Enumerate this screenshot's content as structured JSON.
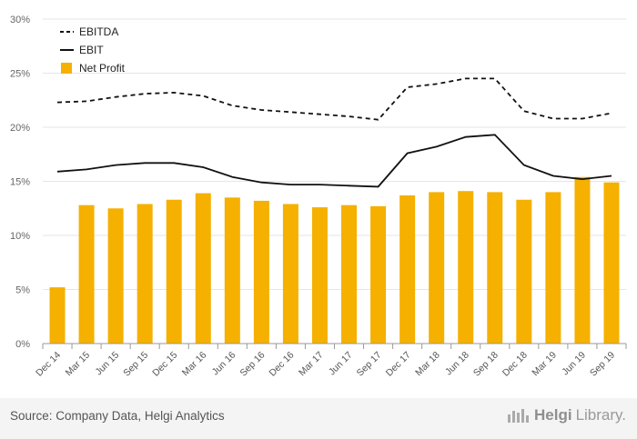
{
  "chart_data": {
    "type": "bar",
    "categories": [
      "Dec 14",
      "Mar 15",
      "Jun 15",
      "Sep 15",
      "Dec 15",
      "Mar 16",
      "Jun 16",
      "Sep 16",
      "Dec 16",
      "Mar 17",
      "Jun 17",
      "Sep 17",
      "Dec 17",
      "Mar 18",
      "Jun 18",
      "Sep 18",
      "Dec 18",
      "Mar 19",
      "Jun 19",
      "Sep 19"
    ],
    "series": [
      {
        "name": "EBITDA",
        "kind": "line",
        "style": "dashed",
        "color": "#111111",
        "values": [
          22.3,
          22.4,
          22.8,
          23.1,
          23.2,
          22.9,
          22.0,
          21.6,
          21.4,
          21.2,
          21.0,
          20.7,
          23.7,
          24.0,
          24.5,
          24.5,
          21.5,
          20.8,
          20.8,
          21.3
        ]
      },
      {
        "name": "EBIT",
        "kind": "line",
        "style": "solid",
        "color": "#111111",
        "values": [
          15.9,
          16.1,
          16.5,
          16.7,
          16.7,
          16.3,
          15.4,
          14.9,
          14.7,
          14.7,
          14.6,
          14.5,
          17.6,
          18.2,
          19.1,
          19.3,
          16.5,
          15.5,
          15.2,
          15.5
        ]
      },
      {
        "name": "Net Profit",
        "kind": "bar",
        "color": "#f5b000",
        "values": [
          5.2,
          12.8,
          12.5,
          12.9,
          13.3,
          13.9,
          13.5,
          13.2,
          12.9,
          12.6,
          12.8,
          12.7,
          13.7,
          14.0,
          14.1,
          14.0,
          13.3,
          14.0,
          15.4,
          14.9
        ]
      }
    ],
    "yticks": [
      "0%",
      "5%",
      "10%",
      "15%",
      "20%",
      "25%",
      "30%"
    ],
    "ylim": [
      0,
      30
    ],
    "title": "",
    "xlabel": "",
    "ylabel": "",
    "legend": "top-left",
    "grid": true
  },
  "footer": {
    "source": "Source: Company Data, Helgi Analytics",
    "brand_bold": "Helgi",
    "brand_rest": "Library."
  }
}
